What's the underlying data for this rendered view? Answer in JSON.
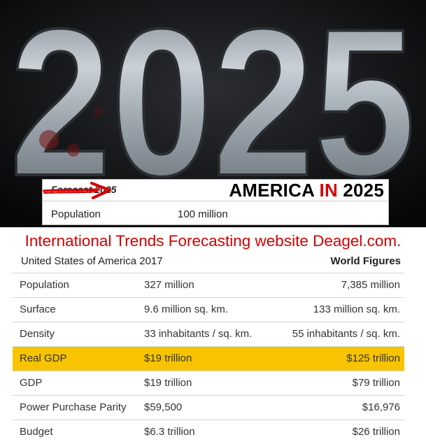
{
  "hero": {
    "big_year": "2025"
  },
  "forecast_box": {
    "label": "Forecast 2025",
    "headline_part1": "AMERICA ",
    "headline_part2": "IN",
    "headline_part3": " 2025",
    "population_label": "Population",
    "population_value": "100 million"
  },
  "source_title": "International Trends Forecasting website Deagel.com.",
  "table": {
    "left_header": "United States of America 2017",
    "right_header": "World Figures",
    "rows": [
      {
        "metric": "Population",
        "usa": "327 million",
        "world": "7,385 million",
        "highlight": false
      },
      {
        "metric": "Surface",
        "usa": "9.6 million sq. km.",
        "world": "133 million sq. km.",
        "highlight": false
      },
      {
        "metric": "Density",
        "usa": "33 inhabitants / sq. km.",
        "world": "55 inhabitants / sq. km.",
        "highlight": false
      },
      {
        "metric": "Real GDP",
        "usa": "$19 trillion",
        "world": "$125 trillion",
        "highlight": true
      },
      {
        "metric": "GDP",
        "usa": "$19 trillion",
        "world": "$79 trillion",
        "highlight": false
      },
      {
        "metric": "Power Purchase Parity",
        "usa": "$59,500",
        "world": "$16,976",
        "highlight": false
      },
      {
        "metric": "Budget",
        "usa": "$6.3 trillion",
        "world": "$26 trillion",
        "highlight": false
      }
    ]
  },
  "colors": {
    "accent_red": "#d40000",
    "highlight_yellow": "#f8c300",
    "hero_bg": "#0d0d0f"
  }
}
